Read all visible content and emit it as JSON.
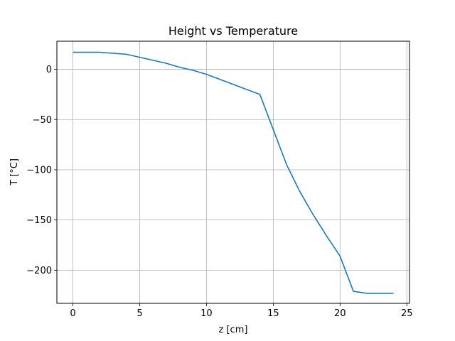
{
  "chart_data": {
    "type": "line",
    "title": "Height vs Temperature",
    "xlabel": "z [cm]",
    "ylabel": "T [°C]",
    "xlim": [
      -1.2,
      25.2
    ],
    "ylim": [
      -233,
      28
    ],
    "xticks": [
      0,
      5,
      10,
      15,
      20,
      25
    ],
    "yticks": [
      0,
      -50,
      -100,
      -150,
      -200
    ],
    "xtick_labels": [
      "0",
      "5",
      "10",
      "15",
      "20",
      "25"
    ],
    "ytick_labels": [
      "0",
      "−50",
      "−100",
      "−150",
      "−200"
    ],
    "grid": true,
    "series": [
      {
        "color": "#1f77b4",
        "x": [
          0,
          2,
          4,
          7,
          8,
          9,
          10,
          12,
          14,
          15,
          16,
          17,
          18,
          19,
          20,
          21,
          22,
          23,
          24
        ],
        "y": [
          17,
          17,
          15,
          6,
          2,
          -1,
          -5,
          -15,
          -25,
          -60,
          -95,
          -122,
          -145,
          -166,
          -186,
          -221,
          -223,
          -223,
          -223
        ]
      }
    ]
  }
}
